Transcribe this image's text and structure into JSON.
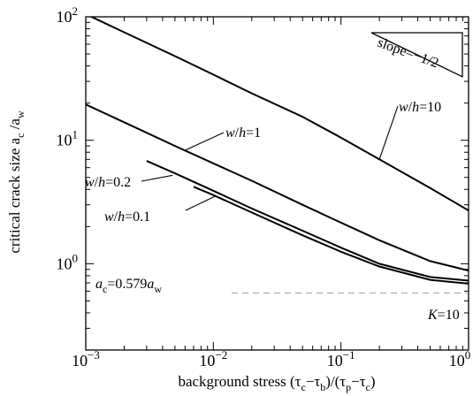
{
  "chart_data": {
    "type": "line",
    "x_scale": "log",
    "y_scale": "log",
    "xlim": [
      0.001,
      1
    ],
    "ylim": [
      0.2,
      100
    ],
    "grid": false,
    "xticks": [
      0.001,
      0.01,
      0.1,
      1
    ],
    "yticks": [
      1,
      10,
      100
    ],
    "xtick_labels": [
      {
        "base": "10",
        "exp": "−3"
      },
      {
        "base": "10",
        "exp": "−2"
      },
      {
        "base": "10",
        "exp": "−1"
      },
      {
        "base": "10",
        "exp": "0"
      }
    ],
    "ytick_labels": [
      {
        "base": "10",
        "exp": "0"
      },
      {
        "base": "10",
        "exp": "1"
      },
      {
        "base": "10",
        "exp": "2"
      }
    ],
    "xlabel": {
      "prefix": "background stress (τ",
      "s1": "c",
      "mid1": "−τ",
      "s2": "b",
      "mid2": ")/(τ",
      "s3": "p",
      "mid3": "−τ",
      "s4": "c",
      "suffix": ")"
    },
    "ylabel": {
      "prefix": "critical crack size a",
      "s1": "c",
      "mid": " /a",
      "s2": "w"
    },
    "series": [
      {
        "label": "w/h=10",
        "x": [
          0.001,
          0.002,
          0.005,
          0.01,
          0.02,
          0.05,
          0.1,
          0.2,
          0.5,
          1.0
        ],
        "y": [
          105,
          75,
          48,
          34,
          24,
          15.5,
          10.5,
          7.0,
          4.1,
          2.7
        ]
      },
      {
        "label": "w/h=1",
        "x": [
          0.001,
          0.002,
          0.005,
          0.01,
          0.02,
          0.05,
          0.1,
          0.2,
          0.5,
          1.0
        ],
        "y": [
          19.5,
          14,
          9.0,
          6.5,
          4.7,
          3.0,
          2.15,
          1.55,
          1.05,
          0.88
        ]
      },
      {
        "label": "w/h=0.2",
        "x": [
          0.003,
          0.005,
          0.01,
          0.02,
          0.05,
          0.1,
          0.2,
          0.5,
          1.0
        ],
        "y": [
          6.8,
          5.4,
          3.9,
          2.8,
          1.85,
          1.35,
          1.0,
          0.78,
          0.73
        ]
      },
      {
        "label": "w/h=0.1",
        "x": [
          0.007,
          0.01,
          0.02,
          0.05,
          0.1,
          0.2,
          0.5,
          1.0
        ],
        "y": [
          4.2,
          3.6,
          2.6,
          1.7,
          1.25,
          0.95,
          0.74,
          0.69
        ]
      }
    ],
    "reference_line": {
      "y": 0.579,
      "style": "dashed",
      "color": "#aaaaaa"
    },
    "annotations": {
      "ac_label": {
        "a": "a",
        "s1": "c",
        "eq": "=0.579",
        "a2": "a",
        "s2": "w"
      },
      "slope": "slope=−1/2",
      "k_label": {
        "k": "K",
        "eq": "=10"
      },
      "series_labels": [
        {
          "w": "w",
          "slash": "/",
          "h": "h",
          "eq": "=10"
        },
        {
          "w": "w",
          "slash": "/",
          "h": "h",
          "eq": "=1"
        },
        {
          "w": "w",
          "slash": "/",
          "h": "h",
          "eq": "=0.2"
        },
        {
          "w": "w",
          "slash": "/",
          "h": "h",
          "eq": "=0.1"
        }
      ]
    }
  }
}
